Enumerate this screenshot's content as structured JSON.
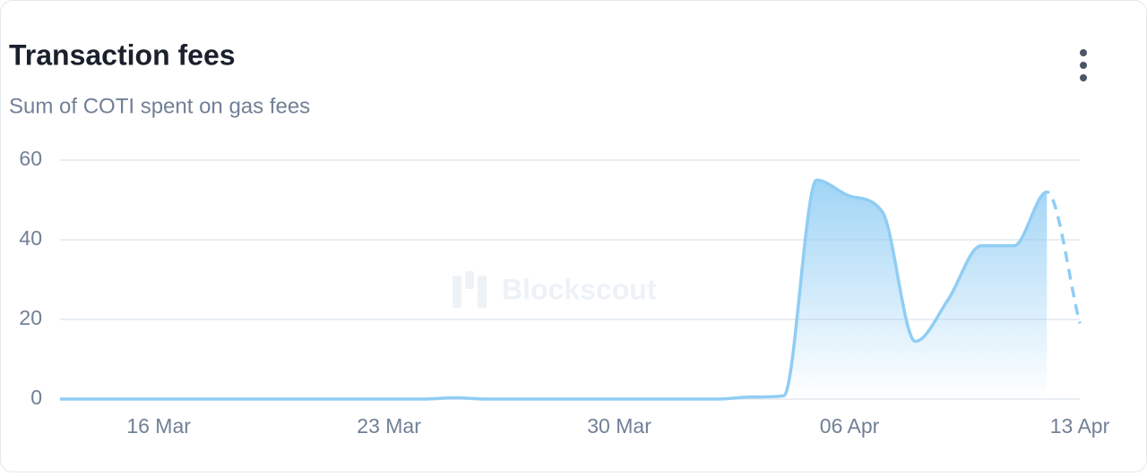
{
  "chart_data": {
    "type": "line",
    "title": "Transaction fees",
    "subtitle": "Sum of COTI spent on gas fees",
    "watermark": "Blockscout",
    "x": [
      "13 Mar",
      "14 Mar",
      "15 Mar",
      "16 Mar",
      "17 Mar",
      "18 Mar",
      "19 Mar",
      "20 Mar",
      "21 Mar",
      "22 Mar",
      "23 Mar",
      "24 Mar",
      "25 Mar",
      "26 Mar",
      "27 Mar",
      "28 Mar",
      "29 Mar",
      "30 Mar",
      "31 Mar",
      "01 Apr",
      "02 Apr",
      "03 Apr",
      "04 Apr",
      "05 Apr",
      "06 Apr",
      "07 Apr",
      "08 Apr",
      "09 Apr",
      "10 Apr",
      "11 Apr",
      "12 Apr",
      "13 Apr"
    ],
    "xticks": [
      "16 Mar",
      "23 Mar",
      "30 Mar",
      "06 Apr",
      "13 Apr"
    ],
    "series": [
      {
        "name": "Transaction fees",
        "color": "#90cdf4",
        "values": [
          0,
          0,
          0,
          0,
          0,
          0,
          0,
          0,
          0,
          0,
          0,
          0,
          0.3,
          0,
          0,
          0,
          0,
          0,
          0,
          0,
          0,
          0.5,
          0.8,
          55,
          51,
          47,
          14.5,
          25,
          38.5,
          38.5,
          52,
          19
        ]
      }
    ],
    "last_segment_dashed": true,
    "ylim": [
      0,
      60
    ],
    "yticks": [
      0,
      20,
      40,
      60
    ],
    "grid": true
  }
}
